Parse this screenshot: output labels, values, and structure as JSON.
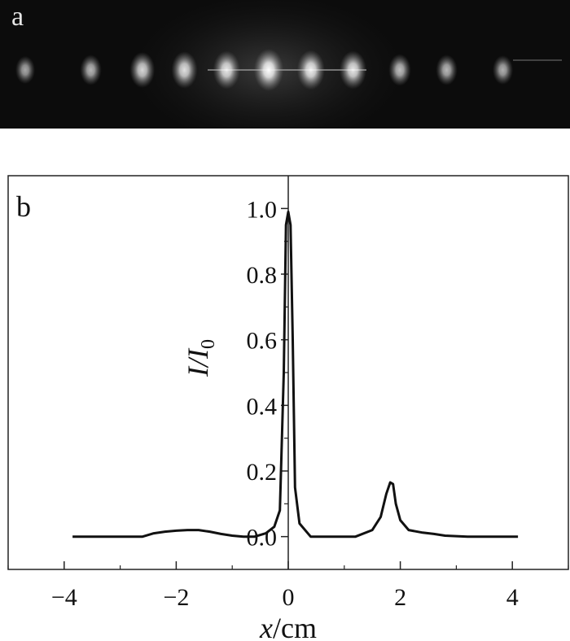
{
  "panel_a": {
    "letter": "a",
    "spots": [
      {
        "x": -2.6,
        "intensity": 0.45
      },
      {
        "x": -1.9,
        "intensity": 0.55
      },
      {
        "x": -1.35,
        "intensity": 0.75
      },
      {
        "x": -0.9,
        "intensity": 0.8
      },
      {
        "x": -0.45,
        "intensity": 0.85
      },
      {
        "x": 0.0,
        "intensity": 1.0
      },
      {
        "x": 0.45,
        "intensity": 0.9
      },
      {
        "x": 0.9,
        "intensity": 0.85
      },
      {
        "x": 1.4,
        "intensity": 0.6
      },
      {
        "x": 1.9,
        "intensity": 0.55
      },
      {
        "x": 2.5,
        "intensity": 0.5
      }
    ]
  },
  "chart_data": {
    "type": "line",
    "panel_letter": "b",
    "xlabel_var": "x",
    "xlabel_unit": "/cm",
    "ylabel_var": "I/I",
    "ylabel_sub": "0",
    "xlim": [
      -5,
      5
    ],
    "ylim": [
      -0.1,
      1.1
    ],
    "xticks": [
      -4,
      -2,
      0,
      2,
      4
    ],
    "xtick_labels": [
      "−4",
      "−2",
      "0",
      "2",
      "4"
    ],
    "yticks": [
      0.0,
      0.2,
      0.4,
      0.6,
      0.8,
      1.0
    ],
    "ytick_labels": [
      "0.0",
      "0.2",
      "0.4",
      "0.6",
      "0.8",
      "1.0"
    ],
    "series": [
      {
        "color": "#111111",
        "x": [
          -3.85,
          -3.0,
          -2.6,
          -2.4,
          -2.2,
          -2.0,
          -1.8,
          -1.6,
          -1.4,
          -1.2,
          -1.0,
          -0.8,
          -0.6,
          -0.4,
          -0.25,
          -0.15,
          -0.08,
          -0.04,
          0.0,
          0.04,
          0.08,
          0.12,
          0.2,
          0.4,
          0.8,
          1.2,
          1.5,
          1.65,
          1.75,
          1.82,
          1.87,
          1.92,
          2.0,
          2.15,
          2.4,
          2.6,
          2.8,
          3.2,
          4.1
        ],
        "y": [
          0.0,
          0.0,
          0.0,
          0.01,
          0.015,
          0.018,
          0.02,
          0.02,
          0.015,
          0.008,
          0.003,
          0.0,
          0.0,
          0.01,
          0.03,
          0.08,
          0.5,
          0.95,
          0.99,
          0.95,
          0.6,
          0.15,
          0.04,
          0.0,
          0.0,
          0.0,
          0.02,
          0.06,
          0.13,
          0.165,
          0.16,
          0.1,
          0.05,
          0.02,
          0.012,
          0.008,
          0.003,
          0.0,
          0.0
        ]
      }
    ]
  }
}
